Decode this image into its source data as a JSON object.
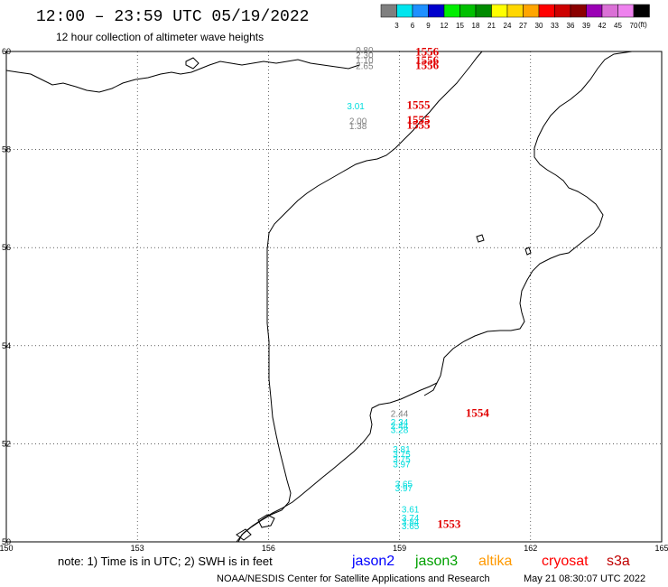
{
  "header": {
    "title": "12:00 – 23:59 UTC 05/19/2022",
    "subtitle": "12 hour collection of altimeter wave heights"
  },
  "colorbar": {
    "unit": "(ft)",
    "colors": [
      "#7f7f7f",
      "#00e5ee",
      "#1e90ff",
      "#0000cd",
      "#00ee00",
      "#00c000",
      "#008b00",
      "#ffff00",
      "#ffd700",
      "#ffa500",
      "#ff0000",
      "#cd0000",
      "#8b0000",
      "#9b00b5",
      "#da70d6",
      "#ee82ee",
      "#000000"
    ],
    "labels": [
      "3",
      "6",
      "9",
      "12",
      "15",
      "18",
      "21",
      "24",
      "27",
      "30",
      "33",
      "36",
      "39",
      "42",
      "45",
      "70"
    ]
  },
  "axes": {
    "lon_range": [
      150,
      165
    ],
    "lat_range": [
      50,
      60
    ],
    "x_ticks": [
      "150",
      "153",
      "156",
      "159",
      "162",
      "165"
    ],
    "y_ticks": [
      "60",
      "58",
      "56",
      "54",
      "52",
      "50"
    ]
  },
  "observations": [
    {
      "value": "0.80",
      "color": "#808080",
      "lon": 158.4,
      "lat": 59.96
    },
    {
      "value": "2.30",
      "color": "#808080",
      "lon": 158.4,
      "lat": 59.86
    },
    {
      "value": "1.10",
      "color": "#808080",
      "lon": 158.4,
      "lat": 59.76
    },
    {
      "value": "2.65",
      "color": "#808080",
      "lon": 158.4,
      "lat": 59.64
    },
    {
      "value": "3.01",
      "color": "#00dddd",
      "lon": 158.2,
      "lat": 58.82
    },
    {
      "value": "2.00",
      "color": "#808080",
      "lon": 158.25,
      "lat": 58.52
    },
    {
      "value": "1.38",
      "color": "#808080",
      "lon": 158.25,
      "lat": 58.42
    },
    {
      "value": "2.44",
      "color": "#808080",
      "lon": 159.2,
      "lat": 52.55
    },
    {
      "value": "2.34",
      "color": "#00dddd",
      "lon": 159.2,
      "lat": 52.38
    },
    {
      "value": "2.44",
      "color": "#00dddd",
      "lon": 159.2,
      "lat": 52.3
    },
    {
      "value": "3.28",
      "color": "#00dddd",
      "lon": 159.2,
      "lat": 52.22
    },
    {
      "value": "3.81",
      "color": "#00dddd",
      "lon": 159.25,
      "lat": 51.82
    },
    {
      "value": "3.75",
      "color": "#00dddd",
      "lon": 159.25,
      "lat": 51.72
    },
    {
      "value": "3.75",
      "color": "#00dddd",
      "lon": 159.25,
      "lat": 51.62
    },
    {
      "value": "3.97",
      "color": "#00dddd",
      "lon": 159.25,
      "lat": 51.52
    },
    {
      "value": "3.65",
      "color": "#00dddd",
      "lon": 159.3,
      "lat": 51.11
    },
    {
      "value": "3.97",
      "color": "#00dddd",
      "lon": 159.3,
      "lat": 51.03
    },
    {
      "value": "3.61",
      "color": "#00dddd",
      "lon": 159.45,
      "lat": 50.6
    },
    {
      "value": "3.74",
      "color": "#00dddd",
      "lon": 159.45,
      "lat": 50.42
    },
    {
      "value": "3.84",
      "color": "#00dddd",
      "lon": 159.45,
      "lat": 50.34
    },
    {
      "value": "3.65",
      "color": "#00dddd",
      "lon": 159.45,
      "lat": 50.26
    }
  ],
  "pass_times": [
    {
      "value": "1556",
      "lon": 159.9,
      "lat": 59.92
    },
    {
      "value": "1556",
      "lon": 159.9,
      "lat": 59.74
    },
    {
      "value": "1556",
      "lon": 159.9,
      "lat": 59.64
    },
    {
      "value": "1555",
      "lon": 159.7,
      "lat": 58.83
    },
    {
      "value": "1555",
      "lon": 159.7,
      "lat": 58.53
    },
    {
      "value": "1555",
      "lon": 159.7,
      "lat": 58.43
    },
    {
      "value": "1554",
      "lon": 161.05,
      "lat": 52.55
    },
    {
      "value": "1553",
      "lon": 160.4,
      "lat": 50.29
    }
  ],
  "footer": {
    "note": "note: 1) Time is in UTC; 2) SWH is in feet",
    "satellites": [
      {
        "name": "jason2",
        "color": "#0000ff"
      },
      {
        "name": "jason3",
        "color": "#00a000"
      },
      {
        "name": "altika",
        "color": "#ff9900"
      },
      {
        "name": "cryosat",
        "color": "#ff0000"
      },
      {
        "name": "s3a",
        "color": "#c00000"
      }
    ],
    "credit": "NOAA/NESDIS Center for Satellite Applications and Research",
    "timestamp": "May 21 08:30:07 UTC 2022"
  }
}
